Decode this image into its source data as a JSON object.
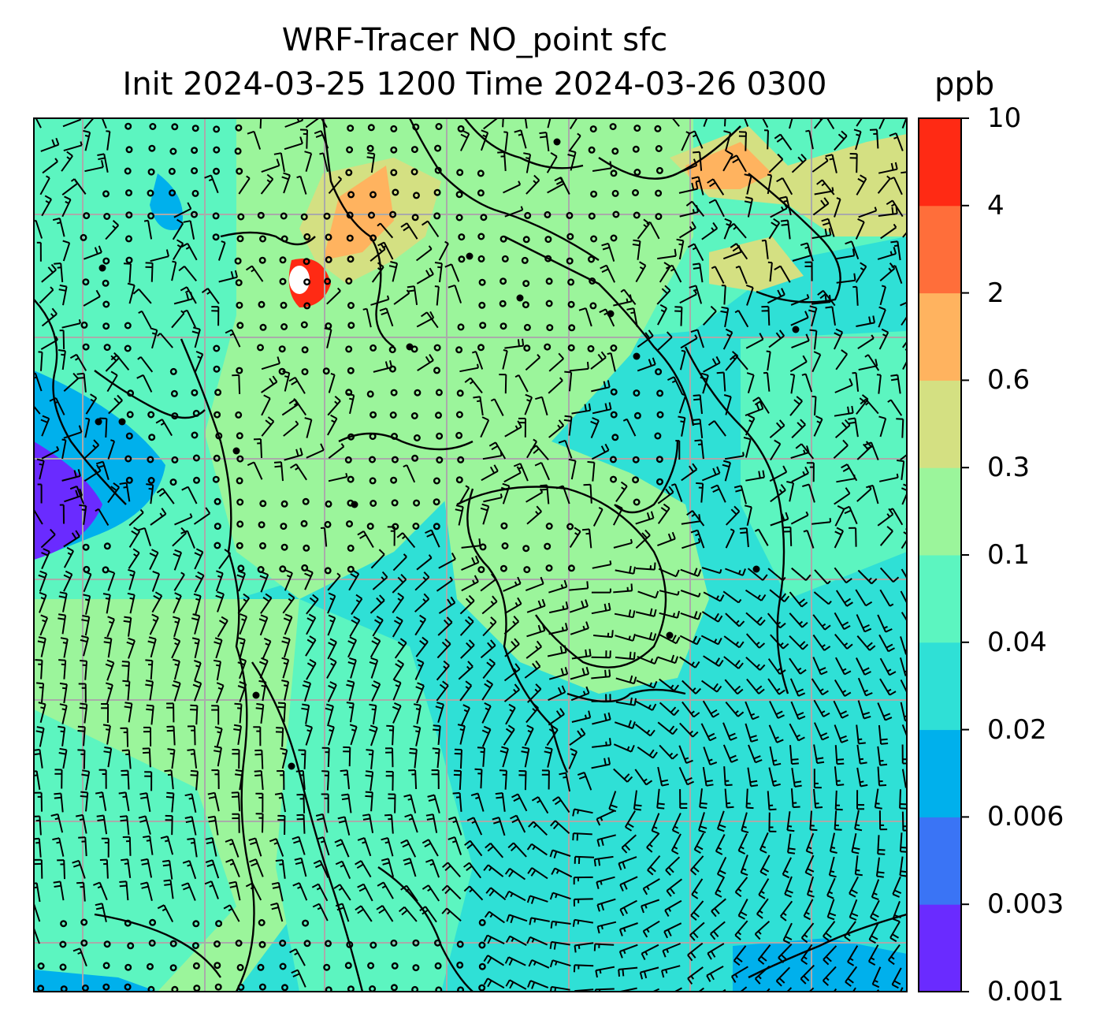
{
  "title_line1": "WRF-Tracer NO_point sfc",
  "title_line2": "Init 2024-03-25 1200 Time 2024-03-26 0300",
  "units": "ppb",
  "colorbar": {
    "levels": [
      "0.001",
      "0.003",
      "0.006",
      "0.02",
      "0.04",
      "0.1",
      "0.3",
      "0.6",
      "2",
      "4",
      "10"
    ],
    "colors": [
      "#6a2bff",
      "#3a74f5",
      "#00b0ec",
      "#2fe0d6",
      "#5cf5c0",
      "#9bf59b",
      "#d4e082",
      "#ffb35f",
      "#ff6e3a",
      "#ff2a14"
    ]
  },
  "field_colors": {
    "ocean": "#2fe0d6",
    "sea_light": "#5cf5c0",
    "land": "#9bf59b",
    "hi": "#d4e082",
    "orange": "#ffb35f",
    "red": "#ff6e3a",
    "deep_red": "#ff2a14",
    "blue": "#00b0ec",
    "violet": "#6a2bff"
  },
  "gridline_color": "#aaaaaa",
  "coastline_color": "#000000",
  "barb_color": "#000000"
}
